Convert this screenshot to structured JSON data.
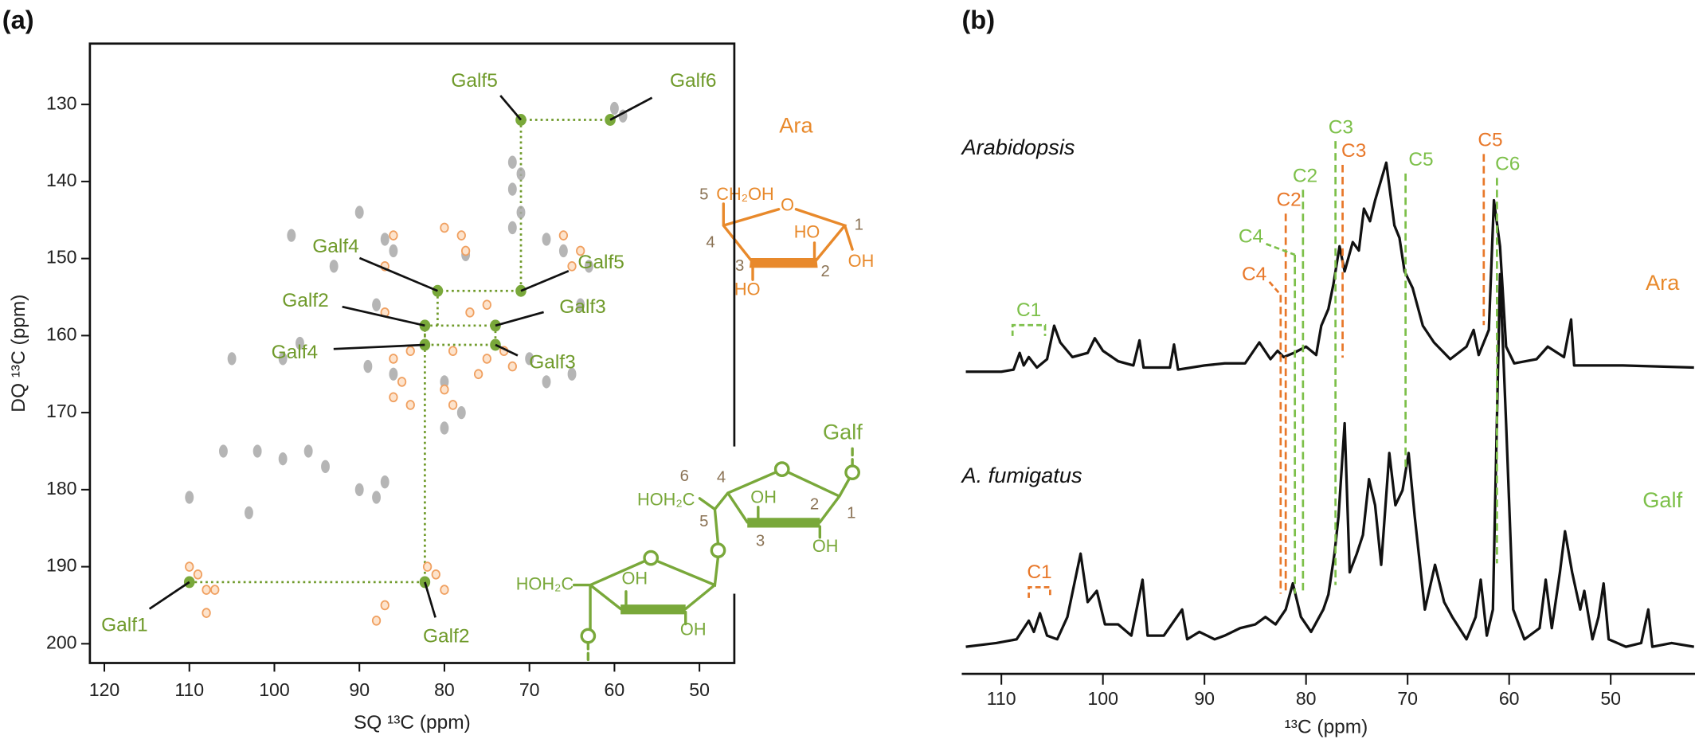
{
  "panel_labels": [
    "(a)",
    "(b)"
  ],
  "chart_data": [
    {
      "type": "scatter",
      "xlabel": "SQ ¹³C (ppm)",
      "ylabel": "DQ ¹³C (ppm)",
      "xlim": [
        121.7,
        45.9
      ],
      "ylim": [
        202.5,
        122.1
      ],
      "xticks": [
        120,
        110,
        100,
        90,
        80,
        70,
        60,
        50
      ],
      "yticks": [
        130,
        140,
        150,
        160,
        170,
        180,
        190,
        200
      ],
      "series": [
        {
          "color": "#a8a8a8",
          "x": [
            60,
            59,
            72,
            71,
            72,
            71,
            72,
            90,
            98,
            87,
            86,
            93,
            88,
            68,
            66,
            77.5,
            63,
            64,
            97,
            99,
            89,
            86,
            80,
            70,
            68,
            65,
            105,
            78,
            80,
            106,
            102,
            99,
            96,
            87,
            88,
            90,
            94,
            110,
            103
          ],
          "y": [
            130.5,
            131.5,
            137.5,
            139,
            141,
            144,
            146,
            144,
            147,
            147.5,
            149,
            151,
            156,
            147.5,
            149,
            149.5,
            151,
            156,
            161,
            163,
            164,
            165,
            166,
            163,
            166,
            165,
            163,
            170,
            172,
            175,
            175,
            176,
            175,
            179,
            181,
            180,
            177,
            181,
            183
          ]
        },
        {
          "color": "#f0a060",
          "x": [
            86,
            87,
            80,
            78,
            77.5,
            66,
            64,
            65,
            87,
            77,
            75,
            84,
            86,
            79,
            76,
            75,
            73,
            72,
            85,
            86,
            80,
            84,
            79,
            109,
            107,
            108,
            110,
            82,
            80,
            87,
            88,
            108,
            81
          ],
          "y": [
            147,
            151,
            146,
            147,
            149,
            147,
            149,
            151,
            157,
            157,
            156,
            162,
            163,
            162,
            165,
            163,
            162,
            164,
            166,
            168,
            167,
            169,
            169,
            191,
            193,
            196,
            190,
            190,
            193,
            195,
            197,
            193,
            191
          ]
        },
        {
          "color": "#79a83a",
          "x": [
            110,
            82.3,
            82.3,
            82.3,
            74,
            74,
            80.8,
            71,
            71,
            60.5
          ],
          "y": [
            192,
            192,
            158.7,
            161.2,
            158.7,
            161.2,
            154.2,
            154.2,
            132,
            132
          ]
        }
      ],
      "annotations": [
        {
          "text": "Galf5",
          "x": 71,
          "y": 132
        },
        {
          "text": "Galf6",
          "x": 60.5,
          "y": 132
        },
        {
          "text": "Galf4",
          "x": 80.8,
          "y": 154.2
        },
        {
          "text": "Galf5",
          "x": 71,
          "y": 154.2
        },
        {
          "text": "Galf2",
          "x": 82.3,
          "y": 158.7
        },
        {
          "text": "Galf3",
          "x": 74,
          "y": 158.7
        },
        {
          "text": "Galf4",
          "x": 82.3,
          "y": 161.2
        },
        {
          "text": "Galf3",
          "x": 74,
          "y": 161.2
        },
        {
          "text": "Galf1",
          "x": 110,
          "y": 192
        },
        {
          "text": "Galf2",
          "x": 82.3,
          "y": 192
        }
      ],
      "connectors": [
        [
          [
            110,
            192
          ],
          [
            82.3,
            192
          ],
          [
            82.3,
            158.7
          ]
        ],
        [
          [
            82.3,
            158.7
          ],
          [
            74,
            158.7
          ],
          [
            74,
            161.2
          ],
          [
            82.3,
            161.2
          ],
          [
            82.3,
            158.7
          ]
        ],
        [
          [
            80.8,
            158.7
          ],
          [
            80.8,
            154.2
          ],
          [
            71,
            154.2
          ],
          [
            71,
            132
          ],
          [
            60.5,
            132
          ]
        ]
      ],
      "connector_color": "#6f9a2a"
    },
    {
      "type": "line",
      "xlabel": "¹³C (ppm)",
      "xlim": [
        113.9,
        41.7
      ],
      "xticks": [
        110,
        100,
        90,
        80,
        70,
        60,
        50
      ],
      "series": [
        {
          "name": "Arabidopsis",
          "label": "Ara",
          "label_color": "#e8892b",
          "color": "#111111",
          "x": [
            113.5,
            110,
            108.8,
            108.2,
            107.8,
            107.3,
            106.5,
            105.5,
            104.8,
            104.2,
            103,
            101.5,
            100.8,
            100,
            98.5,
            97,
            96.4,
            96,
            95,
            93.4,
            93,
            92.6,
            90,
            88,
            86,
            84.6,
            83.5,
            82.8,
            82.2,
            81.2,
            80,
            79,
            78.5,
            77.8,
            77.3,
            76.7,
            76.2,
            75.4,
            74.8,
            74.3,
            73.7,
            73.2,
            72.1,
            71.3,
            70.8,
            70.3,
            69.5,
            68.5,
            67.4,
            65.8,
            64.2,
            63.5,
            63,
            62,
            61.5,
            60.9,
            60.3,
            59.5,
            57.3,
            56.2,
            54.6,
            53.9,
            53.6,
            52,
            48.8,
            41.8
          ],
          "values": [
            0,
            0,
            1,
            9,
            3,
            7,
            2,
            6,
            22,
            14,
            7,
            9,
            16,
            10,
            5,
            3,
            15,
            2,
            2,
            2,
            13,
            1,
            3,
            4,
            4,
            14,
            6,
            10,
            7,
            9,
            12,
            8,
            22,
            30,
            42,
            60,
            48,
            62,
            58,
            78,
            72,
            82,
            100,
            70,
            64,
            48,
            40,
            22,
            14,
            6,
            12,
            20,
            8,
            20,
            82,
            60,
            12,
            4,
            6,
            12,
            7,
            25,
            3,
            3,
            3,
            2
          ]
        },
        {
          "name": "A. fumigatus",
          "label": "Galf",
          "label_color": "#7dc04a",
          "color": "#111111",
          "x": [
            113.5,
            110.5,
            108.5,
            107.3,
            106.8,
            106.2,
            105.5,
            104.5,
            103.5,
            102.2,
            101.5,
            100.6,
            99.8,
            98.5,
            97.2,
            96.1,
            95.6,
            94,
            92.2,
            91.7,
            90.5,
            89,
            88,
            86.5,
            85,
            84,
            83,
            82,
            81.3,
            80.5,
            79.5,
            78.3,
            77.8,
            77.2,
            76.8,
            76.2,
            75.7,
            75,
            74.4,
            73.8,
            73.2,
            72.6,
            71.8,
            71.2,
            70.5,
            69.9,
            69.3,
            68.3,
            67.3,
            66.4,
            65.6,
            64.2,
            63.3,
            62.8,
            62.2,
            61.6,
            60.9,
            60.3,
            59.6,
            58.5,
            57,
            56.4,
            55.8,
            55,
            54.5,
            53.8,
            53,
            52.6,
            51.8,
            51.2,
            50.7,
            50.2,
            48.5,
            47,
            46.3,
            45.9,
            44,
            41.8
          ],
          "values": [
            0,
            1,
            2,
            7,
            4,
            9,
            3,
            2,
            8,
            25,
            12,
            15,
            6,
            6,
            3,
            18,
            3,
            3,
            10,
            2,
            4,
            2,
            3,
            5,
            6,
            8,
            6,
            10,
            17,
            8,
            4,
            10,
            14,
            25,
            35,
            60,
            20,
            25,
            30,
            45,
            38,
            22,
            52,
            38,
            42,
            52,
            35,
            10,
            22,
            12,
            8,
            2,
            8,
            18,
            3,
            10,
            100,
            60,
            10,
            2,
            5,
            18,
            5,
            20,
            31,
            20,
            10,
            15,
            2,
            8,
            17,
            2,
            0,
            1,
            10,
            0,
            1,
            0
          ]
        }
      ],
      "markers": [
        {
          "label": "C1",
          "x": [
            108.9,
            105.7
          ],
          "color": "#7dc04a"
        },
        {
          "label": "C1",
          "x": [
            107.3,
            105.2
          ],
          "color": "#e8782a"
        },
        {
          "label": "C4",
          "x": 82.5,
          "color": "#e8782a"
        },
        {
          "label": "C2",
          "x": 82.0,
          "color": "#e8782a"
        },
        {
          "label": "C4",
          "x": 81.1,
          "color": "#7dc04a"
        },
        {
          "label": "C2",
          "x": 80.3,
          "color": "#7dc04a"
        },
        {
          "label": "C3",
          "x": 77.1,
          "color": "#7dc04a"
        },
        {
          "label": "C3",
          "x": 76.4,
          "color": "#e8782a"
        },
        {
          "label": "C5",
          "x": 70.2,
          "color": "#7dc04a"
        },
        {
          "label": "C5",
          "x": 62.5,
          "color": "#e8782a"
        },
        {
          "label": "C6",
          "x": 61.2,
          "color": "#7dc04a"
        }
      ]
    }
  ],
  "structures": {
    "ara": {
      "labels": [
        "Ara",
        "5",
        "CH₂OH",
        "4",
        "3",
        "2",
        "1",
        "HO",
        "OH",
        "HO",
        "O"
      ]
    },
    "galf": {
      "labels": [
        "Galf",
        "6",
        "4",
        "5",
        "3",
        "2",
        "1",
        "HOH₂C",
        "OH",
        "OH",
        "HOH₂C",
        "OH",
        "OH"
      ]
    }
  }
}
